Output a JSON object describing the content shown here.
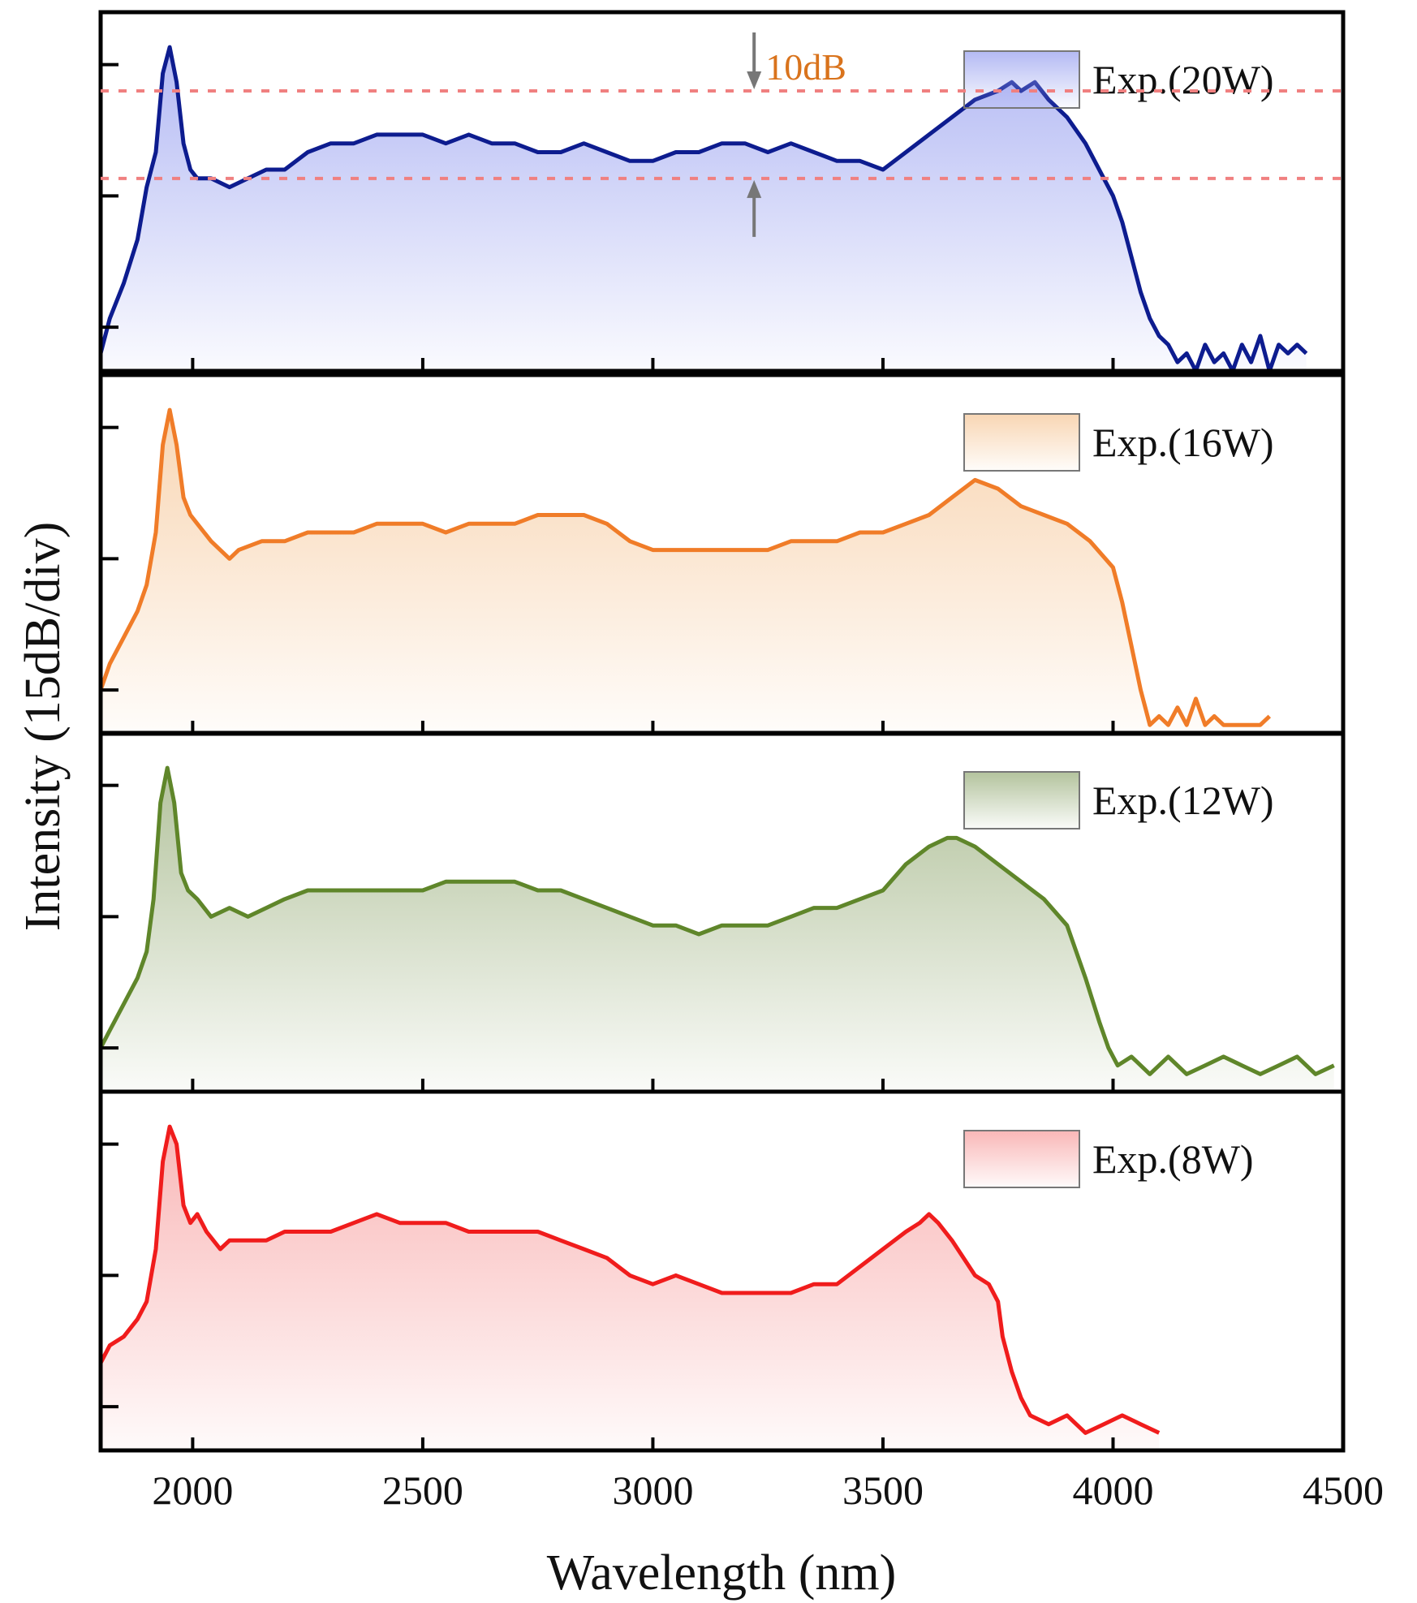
{
  "chart_data": {
    "type": "line",
    "xlabel": "Wavelength (nm)",
    "ylabel": "Intensity (15dB/div)",
    "xlim": [
      1800,
      4500
    ],
    "xticks": [
      2000,
      2500,
      3000,
      3500,
      4000,
      4500
    ],
    "x_tick_labels": [
      "2000",
      "2500",
      "3000",
      "3500",
      "4000",
      "4500"
    ],
    "panels": [
      {
        "name": "Exp.(20W)",
        "color": "#0d1c8f",
        "fill_color": "#9aa2f0",
        "x": [
          1800,
          1820,
          1850,
          1880,
          1900,
          1920,
          1935,
          1950,
          1965,
          1980,
          1995,
          2010,
          2040,
          2080,
          2120,
          2160,
          2200,
          2250,
          2300,
          2350,
          2400,
          2450,
          2500,
          2550,
          2600,
          2650,
          2700,
          2750,
          2800,
          2850,
          2900,
          2950,
          3000,
          3050,
          3100,
          3150,
          3200,
          3250,
          3300,
          3350,
          3400,
          3450,
          3500,
          3550,
          3600,
          3650,
          3700,
          3750,
          3780,
          3800,
          3830,
          3860,
          3900,
          3940,
          3980,
          4000,
          4020,
          4040,
          4060,
          4080,
          4100,
          4120,
          4140,
          4160,
          4180,
          4200,
          4220,
          4240,
          4260,
          4280,
          4300,
          4320,
          4340,
          4360,
          4380,
          4400,
          4420
        ],
        "y": [
          -3,
          1,
          5,
          10,
          16,
          20,
          29,
          32,
          28,
          21,
          18,
          17,
          17,
          16,
          17,
          18,
          18,
          20,
          21,
          21,
          22,
          22,
          22,
          21,
          22,
          21,
          21,
          20,
          20,
          21,
          20,
          19,
          19,
          20,
          20,
          21,
          21,
          20,
          21,
          20,
          19,
          19,
          18,
          20,
          22,
          24,
          26,
          27,
          28,
          27,
          28,
          26,
          24,
          21,
          17,
          15,
          12,
          8,
          4,
          1,
          -1,
          -2,
          -4,
          -3,
          -5,
          -2,
          -4,
          -3,
          -5,
          -2,
          -4,
          -1,
          -5,
          -2,
          -3,
          -2,
          -3
        ],
        "legend_position": "top-right"
      },
      {
        "name": "Exp.(16W)",
        "color": "#f07c28",
        "fill_color": "#f6c89a",
        "x": [
          1800,
          1820,
          1850,
          1880,
          1900,
          1920,
          1935,
          1950,
          1965,
          1980,
          1995,
          2010,
          2040,
          2080,
          2100,
          2150,
          2200,
          2250,
          2300,
          2350,
          2400,
          2450,
          2500,
          2550,
          2600,
          2650,
          2700,
          2750,
          2800,
          2850,
          2900,
          2950,
          3000,
          3050,
          3100,
          3150,
          3200,
          3250,
          3300,
          3350,
          3400,
          3450,
          3500,
          3550,
          3600,
          3650,
          3700,
          3750,
          3800,
          3850,
          3900,
          3950,
          4000,
          4020,
          4040,
          4060,
          4070,
          4080,
          4100,
          4120,
          4140,
          4160,
          4180,
          4200,
          4220,
          4240,
          4260,
          4280,
          4300,
          4320,
          4340
        ],
        "y": [
          0,
          3,
          6,
          9,
          12,
          18,
          28,
          32,
          28,
          22,
          20,
          19,
          17,
          15,
          16,
          17,
          17,
          18,
          18,
          18,
          19,
          19,
          19,
          18,
          19,
          19,
          19,
          20,
          20,
          20,
          19,
          17,
          16,
          16,
          16,
          16,
          16,
          16,
          17,
          17,
          17,
          18,
          18,
          19,
          20,
          22,
          24,
          23,
          21,
          20,
          19,
          17,
          14,
          10,
          5,
          0,
          -2,
          -4,
          -3,
          -4,
          -2,
          -4,
          -1,
          -4,
          -3,
          -4,
          -4,
          -4,
          -4,
          -4,
          -3
        ],
        "legend_position": "top-right"
      },
      {
        "name": "Exp.(12W)",
        "color": "#5f862a",
        "fill_color": "#9aaf7c",
        "x": [
          1800,
          1820,
          1850,
          1880,
          1900,
          1915,
          1930,
          1945,
          1960,
          1975,
          1990,
          2010,
          2040,
          2080,
          2120,
          2160,
          2200,
          2250,
          2300,
          2350,
          2400,
          2450,
          2500,
          2550,
          2600,
          2650,
          2700,
          2750,
          2800,
          2850,
          2900,
          2950,
          3000,
          3050,
          3100,
          3150,
          3200,
          3250,
          3300,
          3350,
          3400,
          3450,
          3500,
          3550,
          3600,
          3640,
          3660,
          3700,
          3750,
          3800,
          3850,
          3900,
          3940,
          3970,
          3990,
          4010,
          4040,
          4080,
          4120,
          4160,
          4200,
          4240,
          4280,
          4320,
          4360,
          4400,
          4440,
          4480
        ],
        "y": [
          0,
          2,
          5,
          8,
          11,
          17,
          28,
          32,
          28,
          20,
          18,
          17,
          15,
          16,
          15,
          16,
          17,
          18,
          18,
          18,
          18,
          18,
          18,
          19,
          19,
          19,
          19,
          18,
          18,
          17,
          16,
          15,
          14,
          14,
          13,
          14,
          14,
          14,
          15,
          16,
          16,
          17,
          18,
          21,
          23,
          24,
          24,
          23,
          21,
          19,
          17,
          14,
          8,
          3,
          0,
          -2,
          -1,
          -3,
          -1,
          -3,
          -2,
          -1,
          -2,
          -3,
          -2,
          -1,
          -3,
          -2
        ],
        "legend_position": "top-right"
      },
      {
        "name": "Exp.(8W)",
        "color": "#f01c1c",
        "fill_color": "#f79f9f",
        "x": [
          1800,
          1820,
          1850,
          1880,
          1900,
          1920,
          1935,
          1950,
          1965,
          1980,
          1995,
          2010,
          2030,
          2060,
          2080,
          2120,
          2160,
          2200,
          2250,
          2300,
          2350,
          2400,
          2450,
          2500,
          2550,
          2600,
          2650,
          2700,
          2750,
          2800,
          2850,
          2900,
          2950,
          3000,
          3050,
          3100,
          3150,
          3200,
          3250,
          3300,
          3350,
          3400,
          3450,
          3500,
          3550,
          3580,
          3600,
          3620,
          3650,
          3700,
          3730,
          3750,
          3760,
          3780,
          3800,
          3820,
          3860,
          3900,
          3940,
          3980,
          4020,
          4060,
          4100
        ],
        "y": [
          5,
          7,
          8,
          10,
          12,
          18,
          28,
          32,
          30,
          23,
          21,
          22,
          20,
          18,
          19,
          19,
          19,
          20,
          20,
          20,
          21,
          22,
          21,
          21,
          21,
          20,
          20,
          20,
          20,
          19,
          18,
          17,
          15,
          14,
          15,
          14,
          13,
          13,
          13,
          13,
          14,
          14,
          16,
          18,
          20,
          21,
          22,
          21,
          19,
          15,
          14,
          12,
          8,
          4,
          1,
          -1,
          -2,
          -1,
          -3,
          -2,
          -1,
          -2,
          -3
        ],
        "legend_position": "top-right"
      }
    ],
    "y_panel_ticks": [
      0,
      15,
      30
    ],
    "annotations": {
      "text": "10dB",
      "text_color": "#d9731c",
      "arrow_x": 3220,
      "upper_line_y": 27,
      "lower_line_y": 17,
      "line_color": "#f08080",
      "panel": 0
    }
  }
}
